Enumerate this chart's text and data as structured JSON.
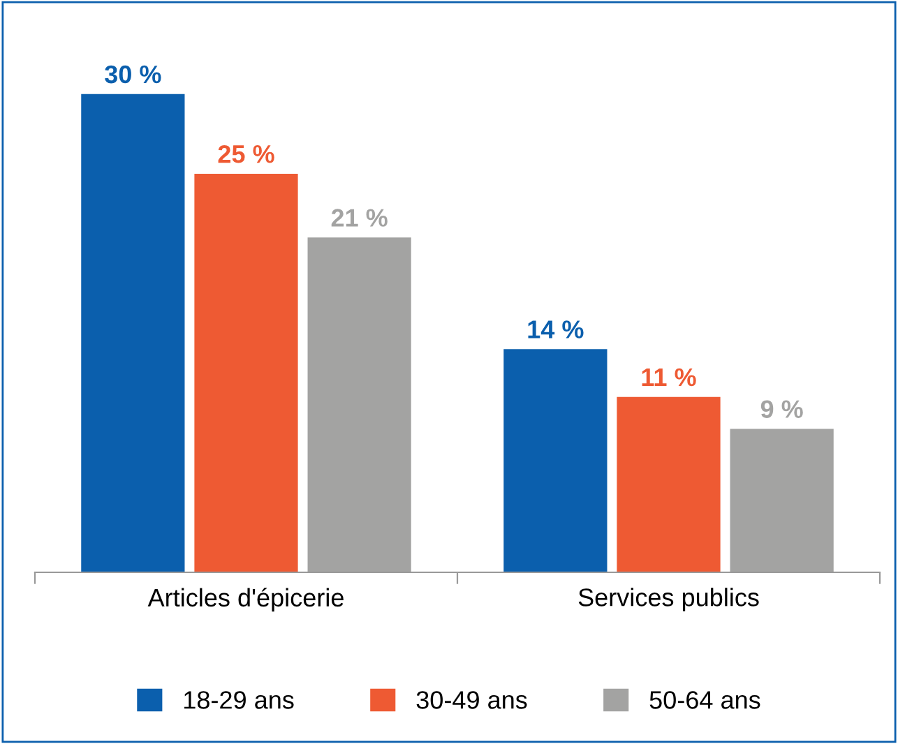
{
  "chart_data": {
    "type": "bar",
    "categories": [
      "Articles d'épicerie",
      "Services publics"
    ],
    "series": [
      {
        "name": "18-29 ans",
        "color": "#0b5fad",
        "values": [
          30,
          14
        ],
        "value_labels": [
          "30 %",
          "14 %"
        ]
      },
      {
        "name": "30-49 ans",
        "color": "#ee5a33",
        "values": [
          25,
          11
        ],
        "value_labels": [
          "25 %",
          "11 %"
        ]
      },
      {
        "name": "50-64 ans",
        "color": "#a3a3a2",
        "values": [
          21,
          9
        ],
        "value_labels": [
          "21 %",
          "9 %"
        ]
      }
    ],
    "legend": "bottom",
    "grid": false
  }
}
